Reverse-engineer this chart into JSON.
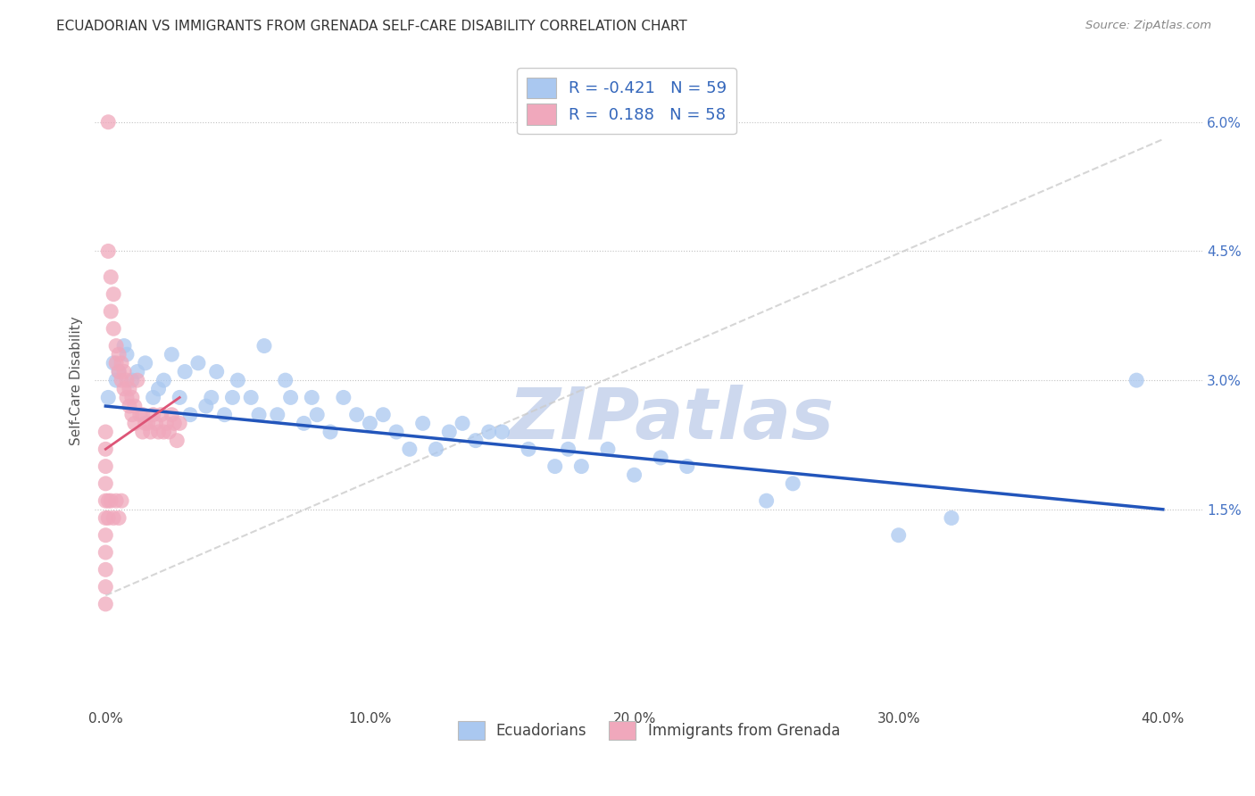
{
  "title": "ECUADORIAN VS IMMIGRANTS FROM GRENADA SELF-CARE DISABILITY CORRELATION CHART",
  "source": "Source: ZipAtlas.com",
  "ylabel": "Self-Care Disability",
  "xlabel_ticks": [
    "0.0%",
    "10.0%",
    "20.0%",
    "30.0%",
    "40.0%"
  ],
  "xlabel_vals": [
    0.0,
    0.1,
    0.2,
    0.3,
    0.4
  ],
  "ylabel_ticks": [
    "1.5%",
    "3.0%",
    "4.5%",
    "6.0%"
  ],
  "ylabel_vals": [
    0.015,
    0.03,
    0.045,
    0.06
  ],
  "xlim": [
    -0.004,
    0.415
  ],
  "ylim": [
    -0.008,
    0.068
  ],
  "ecuadorian_color": "#aac8f0",
  "grenada_color": "#f0a8bc",
  "trendline_blue_color": "#2255bb",
  "trendline_pink_color": "#dd5577",
  "trendline_dashed_color": "#cccccc",
  "legend_R1": "-0.421",
  "legend_N1": "59",
  "legend_R2": "0.188",
  "legend_N2": "58",
  "ecuadorians_points": [
    [
      0.001,
      0.028
    ],
    [
      0.003,
      0.032
    ],
    [
      0.004,
      0.03
    ],
    [
      0.005,
      0.031
    ],
    [
      0.007,
      0.034
    ],
    [
      0.008,
      0.033
    ],
    [
      0.01,
      0.03
    ],
    [
      0.012,
      0.031
    ],
    [
      0.015,
      0.032
    ],
    [
      0.018,
      0.028
    ],
    [
      0.02,
      0.029
    ],
    [
      0.022,
      0.03
    ],
    [
      0.025,
      0.033
    ],
    [
      0.028,
      0.028
    ],
    [
      0.03,
      0.031
    ],
    [
      0.032,
      0.026
    ],
    [
      0.035,
      0.032
    ],
    [
      0.038,
      0.027
    ],
    [
      0.04,
      0.028
    ],
    [
      0.042,
      0.031
    ],
    [
      0.045,
      0.026
    ],
    [
      0.048,
      0.028
    ],
    [
      0.05,
      0.03
    ],
    [
      0.055,
      0.028
    ],
    [
      0.058,
      0.026
    ],
    [
      0.06,
      0.034
    ],
    [
      0.065,
      0.026
    ],
    [
      0.068,
      0.03
    ],
    [
      0.07,
      0.028
    ],
    [
      0.075,
      0.025
    ],
    [
      0.078,
      0.028
    ],
    [
      0.08,
      0.026
    ],
    [
      0.085,
      0.024
    ],
    [
      0.09,
      0.028
    ],
    [
      0.095,
      0.026
    ],
    [
      0.1,
      0.025
    ],
    [
      0.105,
      0.026
    ],
    [
      0.11,
      0.024
    ],
    [
      0.115,
      0.022
    ],
    [
      0.12,
      0.025
    ],
    [
      0.125,
      0.022
    ],
    [
      0.13,
      0.024
    ],
    [
      0.135,
      0.025
    ],
    [
      0.14,
      0.023
    ],
    [
      0.145,
      0.024
    ],
    [
      0.15,
      0.024
    ],
    [
      0.16,
      0.022
    ],
    [
      0.17,
      0.02
    ],
    [
      0.175,
      0.022
    ],
    [
      0.18,
      0.02
    ],
    [
      0.19,
      0.022
    ],
    [
      0.2,
      0.019
    ],
    [
      0.21,
      0.021
    ],
    [
      0.22,
      0.02
    ],
    [
      0.25,
      0.016
    ],
    [
      0.26,
      0.018
    ],
    [
      0.3,
      0.012
    ],
    [
      0.32,
      0.014
    ],
    [
      0.39,
      0.03
    ]
  ],
  "grenada_points": [
    [
      0.001,
      0.06
    ],
    [
      0.001,
      0.045
    ],
    [
      0.002,
      0.042
    ],
    [
      0.002,
      0.038
    ],
    [
      0.003,
      0.04
    ],
    [
      0.003,
      0.036
    ],
    [
      0.004,
      0.034
    ],
    [
      0.004,
      0.032
    ],
    [
      0.005,
      0.033
    ],
    [
      0.005,
      0.031
    ],
    [
      0.006,
      0.032
    ],
    [
      0.006,
      0.03
    ],
    [
      0.007,
      0.031
    ],
    [
      0.007,
      0.029
    ],
    [
      0.008,
      0.03
    ],
    [
      0.008,
      0.028
    ],
    [
      0.009,
      0.029
    ],
    [
      0.009,
      0.027
    ],
    [
      0.01,
      0.028
    ],
    [
      0.01,
      0.026
    ],
    [
      0.011,
      0.027
    ],
    [
      0.011,
      0.025
    ],
    [
      0.012,
      0.03
    ],
    [
      0.013,
      0.026
    ],
    [
      0.014,
      0.026
    ],
    [
      0.014,
      0.024
    ],
    [
      0.015,
      0.025
    ],
    [
      0.016,
      0.025
    ],
    [
      0.017,
      0.024
    ],
    [
      0.018,
      0.026
    ],
    [
      0.019,
      0.025
    ],
    [
      0.02,
      0.024
    ],
    [
      0.021,
      0.026
    ],
    [
      0.022,
      0.024
    ],
    [
      0.023,
      0.025
    ],
    [
      0.024,
      0.024
    ],
    [
      0.025,
      0.026
    ],
    [
      0.026,
      0.025
    ],
    [
      0.027,
      0.023
    ],
    [
      0.028,
      0.025
    ],
    [
      0.0,
      0.024
    ],
    [
      0.0,
      0.022
    ],
    [
      0.0,
      0.02
    ],
    [
      0.0,
      0.018
    ],
    [
      0.0,
      0.016
    ],
    [
      0.0,
      0.014
    ],
    [
      0.0,
      0.012
    ],
    [
      0.0,
      0.01
    ],
    [
      0.0,
      0.008
    ],
    [
      0.0,
      0.006
    ],
    [
      0.0,
      0.004
    ],
    [
      0.001,
      0.016
    ],
    [
      0.001,
      0.014
    ],
    [
      0.002,
      0.016
    ],
    [
      0.003,
      0.014
    ],
    [
      0.004,
      0.016
    ],
    [
      0.005,
      0.014
    ],
    [
      0.006,
      0.016
    ]
  ],
  "watermark_text": "ZIPatlas",
  "watermark_color": "#cdd8ee",
  "blue_trend_x": [
    0.0,
    0.4
  ],
  "blue_trend_y": [
    0.027,
    0.015
  ],
  "pink_trend_x": [
    0.0,
    0.028
  ],
  "pink_trend_y": [
    0.022,
    0.028
  ],
  "diag_line_x": [
    0.0,
    0.4
  ],
  "diag_line_y": [
    0.005,
    0.058
  ]
}
